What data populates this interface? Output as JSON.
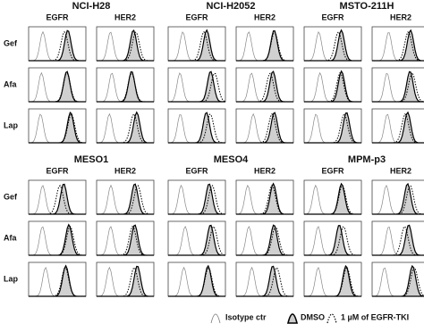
{
  "blocks": [
    {
      "cell_lines": [
        "NCI-H28",
        "NCI-H2052",
        "MSTO-211H"
      ]
    },
    {
      "cell_lines": [
        "MESO1",
        "MESO4",
        "MPM-p3"
      ]
    }
  ],
  "markers": [
    "EGFR",
    "HER2"
  ],
  "treatments": [
    "Gef",
    "Afa",
    "Lap"
  ],
  "legend": [
    "Isotype ctr",
    "DMSO",
    "1 µM of EGFR-TKI"
  ]
}
